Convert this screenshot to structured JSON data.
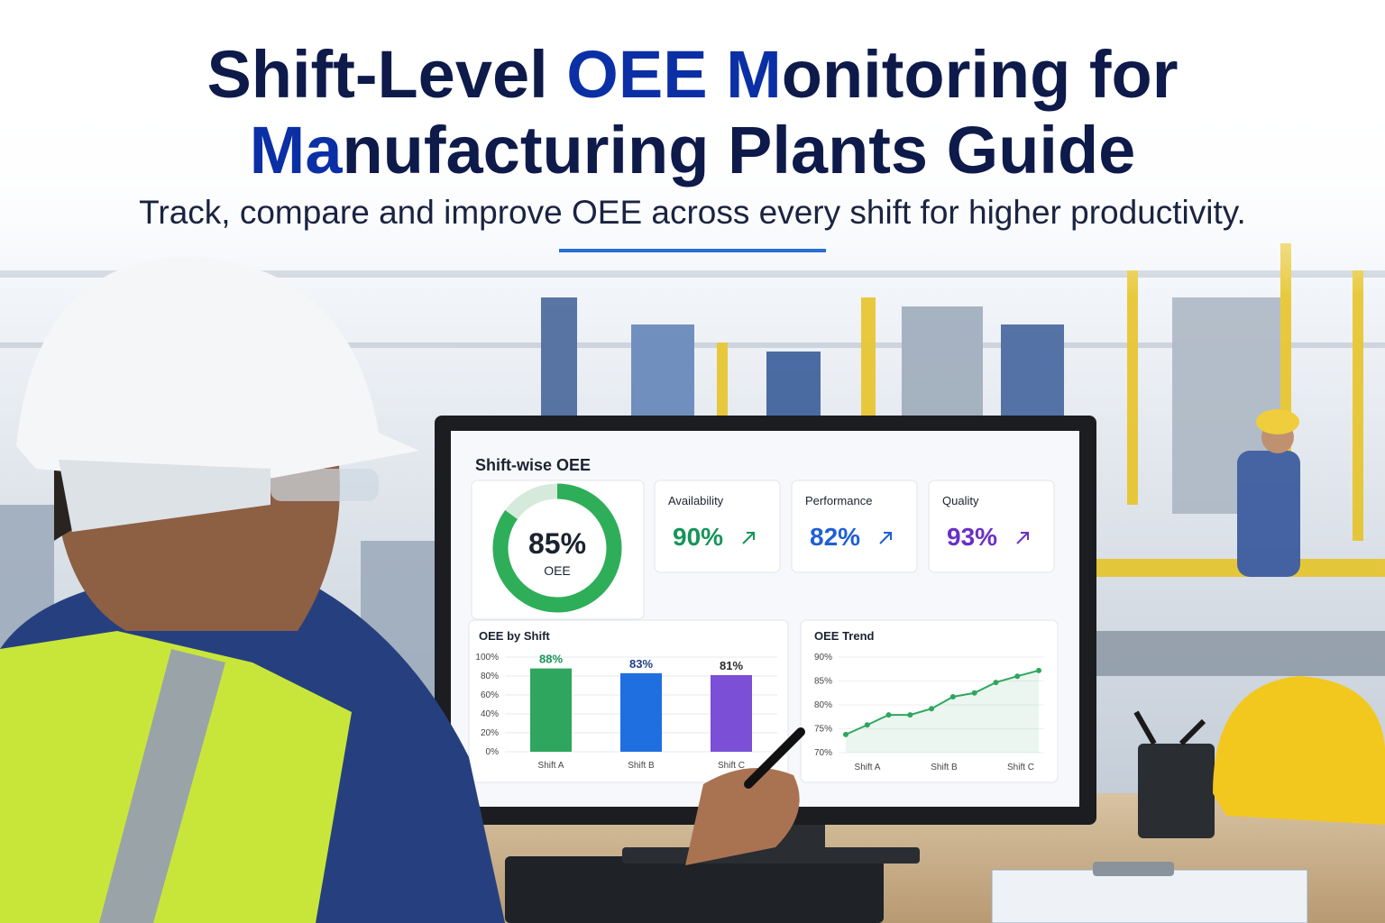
{
  "header": {
    "title_lines": [
      [
        {
          "text": "Shift-Level ",
          "accent": false
        },
        {
          "text": "OEE M",
          "accent": true
        },
        {
          "text": "onitoring for",
          "accent": false
        }
      ],
      [
        {
          "text": "Ma",
          "accent": true
        },
        {
          "text": "nufacturing Plants Guide",
          "accent": false
        }
      ]
    ],
    "subtitle": "Track, compare and improve OEE across every shift for higher productivity."
  },
  "dashboard": {
    "title": "Shift-wise OEE",
    "oee": {
      "value": 85,
      "value_label": "85%",
      "label": "OEE",
      "max": 100,
      "color": "#2fae5a"
    },
    "metrics": [
      {
        "label": "Availability",
        "value": "90%",
        "color": "#17955a"
      },
      {
        "label": "Performance",
        "value": "82%",
        "color": "#1f5fd6"
      },
      {
        "label": "Quality",
        "value": "93%",
        "color": "#6a2fc7"
      }
    ],
    "oee_by_shift": {
      "type": "bar",
      "title": "OEE by Shift",
      "categories": [
        "Shift A",
        "Shift B",
        "Shift C"
      ],
      "values": [
        88,
        83,
        81
      ],
      "value_labels": [
        "88%",
        "83%",
        "81%"
      ],
      "colors": [
        "#2ea65e",
        "#1f6fe0",
        "#7b4fd6"
      ],
      "label_colors": [
        "#17955a",
        "#1f3f8a",
        "#2a2a2a"
      ],
      "ylim": [
        0,
        100
      ],
      "yticks": [
        {
          "value": 0,
          "label": "0%"
        },
        {
          "value": 20,
          "label": "20%"
        },
        {
          "value": 40,
          "label": "40%"
        },
        {
          "value": 60,
          "label": "60%"
        },
        {
          "value": 80,
          "label": "80%"
        },
        {
          "value": 100,
          "label": "100%"
        }
      ],
      "grid": true
    },
    "oee_trend": {
      "type": "line",
      "title": "OEE Trend",
      "x_labels": [
        "Shift A",
        "Shift B",
        "Shift C"
      ],
      "values": [
        73.8,
        75.8,
        77.9,
        77.9,
        79.2,
        81.7,
        82.5,
        84.7,
        86.0,
        87.2
      ],
      "color": "#2ea65e",
      "ylim": [
        70,
        90
      ],
      "yticks": [
        {
          "value": 70,
          "label": "70%"
        },
        {
          "value": 75,
          "label": "75%"
        },
        {
          "value": 80,
          "label": "80%"
        },
        {
          "value": 85,
          "label": "85%"
        },
        {
          "value": 90,
          "label": "90%"
        }
      ],
      "grid": true
    }
  }
}
